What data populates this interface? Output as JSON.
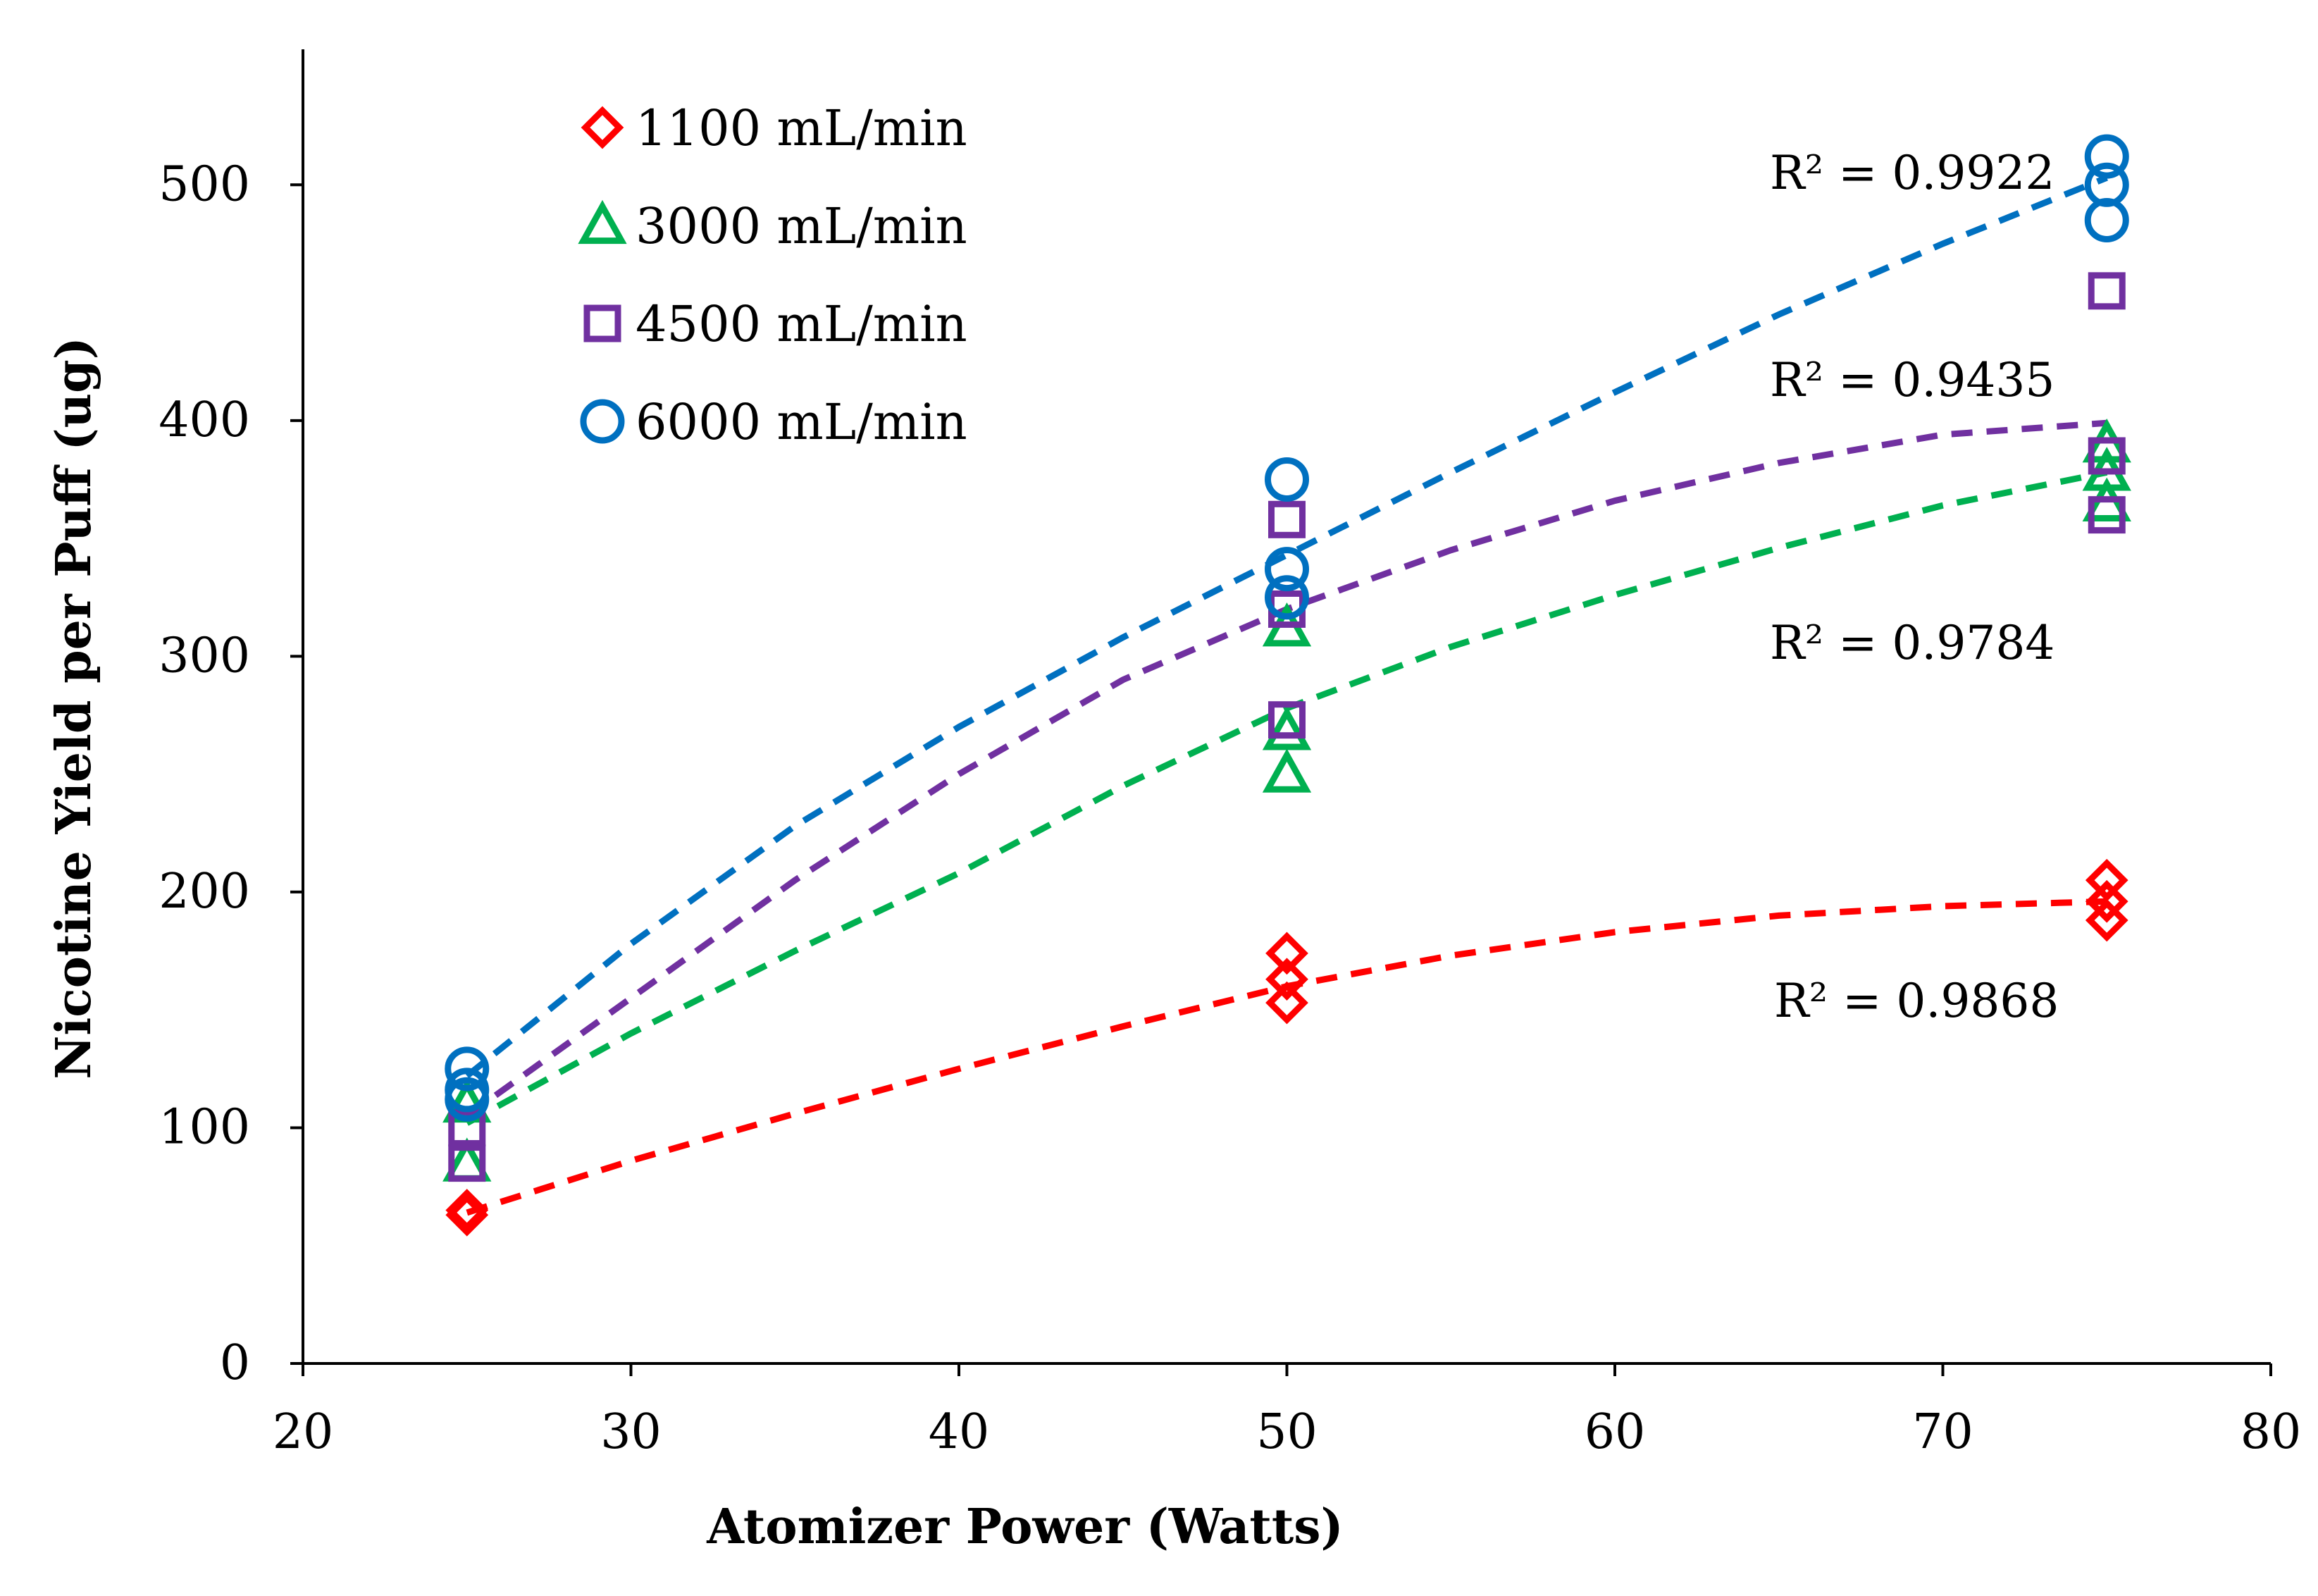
{
  "chart_data": {
    "type": "scatter",
    "title": "",
    "xlabel": "Atomizer Power (Watts)",
    "ylabel": "Nicotine Yield per Puff (ug)",
    "xlim": [
      20,
      80
    ],
    "ylim": [
      0,
      550
    ],
    "x_ticks": [
      20,
      30,
      40,
      50,
      60,
      70,
      80
    ],
    "y_ticks": [
      0,
      100,
      200,
      300,
      400,
      500
    ],
    "grid": false,
    "legend_position": "top-left",
    "series": [
      {
        "name": "1100 mL/min",
        "marker": "diamond",
        "color": "#ff0000",
        "points": [
          [
            25,
            63
          ],
          [
            25,
            65
          ],
          [
            50,
            153
          ],
          [
            50,
            163
          ],
          [
            50,
            174
          ],
          [
            75,
            188
          ],
          [
            75,
            196
          ],
          [
            75,
            205
          ]
        ],
        "trend": [
          [
            25,
            64
          ],
          [
            30,
            86
          ],
          [
            35,
            106
          ],
          [
            40,
            125
          ],
          [
            45,
            143
          ],
          [
            50,
            160
          ],
          [
            55,
            173
          ],
          [
            60,
            183
          ],
          [
            65,
            190
          ],
          [
            70,
            194
          ],
          [
            75,
            196
          ]
        ],
        "r2_label": "R² = 0.9868"
      },
      {
        "name": "3000 mL/min",
        "marker": "triangle",
        "color": "#00b050",
        "points": [
          [
            25,
            85
          ],
          [
            25,
            110
          ],
          [
            50,
            250
          ],
          [
            50,
            268
          ],
          [
            50,
            312
          ],
          [
            75,
            365
          ],
          [
            75,
            378
          ],
          [
            75,
            390
          ]
        ],
        "trend": [
          [
            25,
            102
          ],
          [
            30,
            140
          ],
          [
            35,
            175
          ],
          [
            40,
            208
          ],
          [
            45,
            245
          ],
          [
            50,
            278
          ],
          [
            55,
            304
          ],
          [
            60,
            326
          ],
          [
            65,
            346
          ],
          [
            70,
            364
          ],
          [
            75,
            378
          ]
        ],
        "r2_label": "R² = 0.9784"
      },
      {
        "name": "4500 mL/min",
        "marker": "square",
        "color": "#7030a0",
        "points": [
          [
            25,
            85
          ],
          [
            25,
            100
          ],
          [
            50,
            273
          ],
          [
            50,
            320
          ],
          [
            50,
            358
          ],
          [
            75,
            360
          ],
          [
            75,
            385
          ],
          [
            75,
            455
          ]
        ],
        "trend": [
          [
            25,
            105
          ],
          [
            30,
            155
          ],
          [
            35,
            205
          ],
          [
            40,
            250
          ],
          [
            45,
            290
          ],
          [
            50,
            320
          ],
          [
            55,
            345
          ],
          [
            60,
            366
          ],
          [
            65,
            382
          ],
          [
            70,
            394
          ],
          [
            75,
            399
          ]
        ],
        "r2_label": "R² = 0.9435"
      },
      {
        "name": "6000 mL/min",
        "marker": "circle",
        "color": "#0070c0",
        "points": [
          [
            25,
            112
          ],
          [
            25,
            116
          ],
          [
            25,
            125
          ],
          [
            50,
            325
          ],
          [
            50,
            337
          ],
          [
            50,
            375
          ],
          [
            75,
            485
          ],
          [
            75,
            500
          ],
          [
            75,
            512
          ]
        ],
        "trend": [
          [
            25,
            122
          ],
          [
            30,
            178
          ],
          [
            35,
            228
          ],
          [
            40,
            270
          ],
          [
            45,
            308
          ],
          [
            50,
            343
          ],
          [
            55,
            378
          ],
          [
            60,
            412
          ],
          [
            65,
            445
          ],
          [
            70,
            475
          ],
          [
            75,
            503
          ]
        ],
        "r2_label": "R² = 0.9922"
      }
    ]
  }
}
